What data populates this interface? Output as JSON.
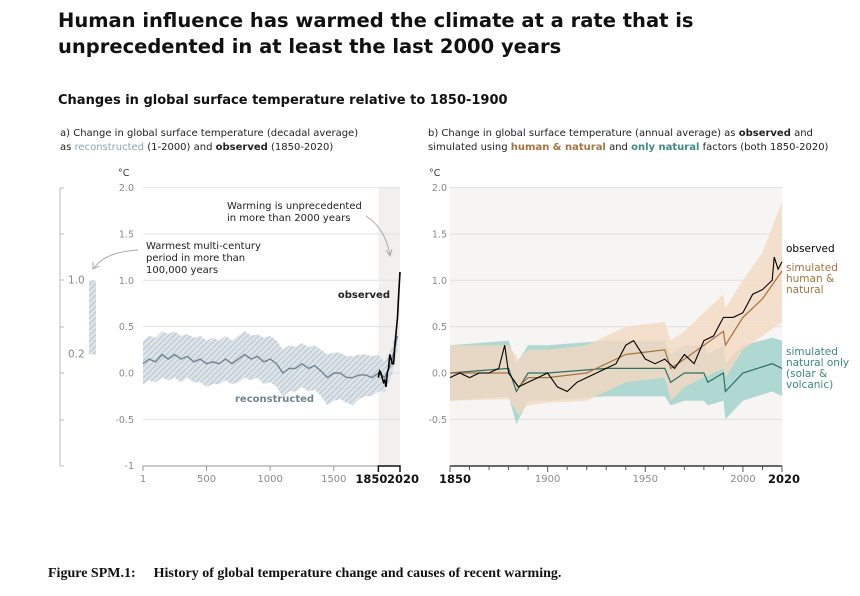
{
  "title": "Human influence has warmed the climate at a rate that is unprecedented in at least the last 2000 years",
  "subtitle": "Changes in global surface temperature relative to 1850-1900",
  "caption": {
    "label": "Figure SPM.1:",
    "text": "History of global temperature change and causes of recent warming."
  },
  "colors": {
    "reconstructed": "#8fa3b2",
    "reconstructed_line": "#6f8593",
    "observed": "#000000",
    "human_natural": "#a6733d",
    "human_natural_band": "#f4d8c2",
    "natural": "#3c8a80",
    "natural_band": "#a3d2cc",
    "shade": "#f1f0ef"
  },
  "chart_data": [
    {
      "type": "line",
      "panel_title": {
        "p1": "a) Change in global surface temperature (decadal average)",
        "p2": "as",
        "reconstructed": "reconstructed",
        "p3": "(1-2000) and",
        "observed": "observed",
        "p4": "(1850-2020)"
      },
      "ylabel": "°C",
      "ylim": [
        -1,
        2
      ],
      "yticks": [
        "2.0",
        "1.5",
        "1.0",
        "0.5",
        "0.0",
        "-0.5",
        "-1"
      ],
      "xlim": [
        1,
        2020
      ],
      "xticks": [
        "1",
        "500",
        "1000",
        "1500"
      ],
      "xticks_bold": [
        "1850",
        "2020"
      ],
      "shaded_period": [
        1850,
        2020
      ],
      "side_bar": {
        "range": [
          0.2,
          1.0
        ],
        "labels": [
          "1.0",
          "0.2"
        ],
        "annotation": [
          "Warmest multi-century",
          "period in more than",
          "100,000 years"
        ]
      },
      "annotation": [
        "Warming is unprecedented",
        "in more than 2000 years"
      ],
      "series": [
        {
          "name": "reconstructed",
          "x": [
            1,
            50,
            100,
            150,
            200,
            250,
            300,
            350,
            400,
            450,
            500,
            550,
            600,
            650,
            700,
            750,
            800,
            850,
            900,
            950,
            1000,
            1050,
            1100,
            1150,
            1200,
            1250,
            1300,
            1350,
            1400,
            1450,
            1500,
            1550,
            1600,
            1650,
            1700,
            1750,
            1800,
            1850,
            1900,
            1950,
            2000
          ],
          "y": [
            0.1,
            0.15,
            0.12,
            0.2,
            0.15,
            0.2,
            0.15,
            0.18,
            0.12,
            0.15,
            0.1,
            0.12,
            0.1,
            0.15,
            0.1,
            0.15,
            0.2,
            0.15,
            0.18,
            0.12,
            0.15,
            0.1,
            0.0,
            0.05,
            0.05,
            0.1,
            0.05,
            0.08,
            0.02,
            -0.05,
            0.0,
            0.0,
            -0.05,
            -0.05,
            -0.02,
            -0.02,
            -0.05,
            0.0,
            -0.05,
            0.1,
            0.4
          ],
          "lower": [
            -0.12,
            -0.08,
            -0.1,
            -0.05,
            -0.08,
            -0.05,
            -0.1,
            -0.05,
            -0.1,
            -0.1,
            -0.15,
            -0.12,
            -0.12,
            -0.08,
            -0.12,
            -0.1,
            -0.05,
            -0.08,
            -0.05,
            -0.12,
            -0.1,
            -0.15,
            -0.25,
            -0.2,
            -0.2,
            -0.15,
            -0.2,
            -0.18,
            -0.25,
            -0.35,
            -0.3,
            -0.28,
            -0.32,
            -0.35,
            -0.28,
            -0.25,
            -0.25,
            -0.2,
            -0.2,
            -0.05,
            0.25
          ],
          "upper": [
            0.35,
            0.4,
            0.38,
            0.45,
            0.42,
            0.45,
            0.4,
            0.42,
            0.38,
            0.4,
            0.35,
            0.38,
            0.35,
            0.4,
            0.35,
            0.4,
            0.45,
            0.4,
            0.42,
            0.38,
            0.4,
            0.35,
            0.25,
            0.3,
            0.28,
            0.32,
            0.28,
            0.3,
            0.25,
            0.2,
            0.22,
            0.22,
            0.18,
            0.18,
            0.2,
            0.2,
            0.18,
            0.2,
            0.12,
            0.25,
            0.5
          ]
        },
        {
          "name": "observed",
          "x": [
            1850,
            1860,
            1870,
            1880,
            1890,
            1900,
            1910,
            1920,
            1930,
            1940,
            1950,
            1960,
            1970,
            1980,
            1990,
            2000,
            2010,
            2020
          ],
          "y": [
            -0.05,
            0.02,
            0.0,
            -0.05,
            -0.1,
            -0.08,
            -0.15,
            0.0,
            0.05,
            0.2,
            0.15,
            0.1,
            0.1,
            0.3,
            0.45,
            0.6,
            0.85,
            1.09
          ]
        }
      ]
    },
    {
      "type": "line",
      "panel_title": {
        "p1": "b) Change in global surface temperature (annual average) as",
        "observed": "observed",
        "p2": "and",
        "p3": "simulated using",
        "human_natural": "human & natural",
        "p4": "and",
        "natural": "only natural",
        "p5": "factors (both 1850-2020)"
      },
      "ylabel": "°C",
      "ylim": [
        -1,
        2
      ],
      "yticks": [
        "2.0",
        "1.5",
        "1.0",
        "0.5",
        "0.0",
        "-0.5"
      ],
      "xlim": [
        1850,
        2020
      ],
      "xticks": [
        "1900",
        "1950",
        "2000"
      ],
      "xticks_bold": [
        "1850",
        "2020"
      ],
      "series": [
        {
          "name": "observed",
          "label": [
            "observed"
          ],
          "x": [
            1850,
            1855,
            1860,
            1865,
            1870,
            1875,
            1878,
            1880,
            1885,
            1890,
            1895,
            1900,
            1905,
            1910,
            1915,
            1920,
            1925,
            1930,
            1935,
            1940,
            1944,
            1950,
            1955,
            1960,
            1965,
            1970,
            1975,
            1980,
            1985,
            1990,
            1995,
            2000,
            2005,
            2010,
            2015,
            2016,
            2018,
            2020
          ],
          "y": [
            -0.05,
            0.0,
            -0.05,
            0.0,
            0.0,
            0.05,
            0.3,
            0.0,
            -0.15,
            -0.1,
            -0.05,
            0.0,
            -0.15,
            -0.2,
            -0.1,
            -0.05,
            0.0,
            0.05,
            0.1,
            0.3,
            0.35,
            0.15,
            0.1,
            0.15,
            0.05,
            0.2,
            0.1,
            0.35,
            0.4,
            0.6,
            0.6,
            0.65,
            0.85,
            0.9,
            1.0,
            1.25,
            1.12,
            1.2
          ]
        },
        {
          "name": "simulated human & natural",
          "label": [
            "simulated",
            "human &",
            "natural"
          ],
          "x": [
            1850,
            1880,
            1885,
            1890,
            1900,
            1920,
            1940,
            1960,
            1963,
            1970,
            1980,
            1990,
            1991,
            2000,
            2010,
            2020
          ],
          "y": [
            0.0,
            0.0,
            -0.15,
            -0.05,
            -0.05,
            0.0,
            0.2,
            0.25,
            0.05,
            0.15,
            0.3,
            0.45,
            0.3,
            0.6,
            0.8,
            1.1
          ],
          "lower": [
            -0.3,
            -0.28,
            -0.45,
            -0.35,
            -0.32,
            -0.3,
            -0.1,
            -0.05,
            -0.3,
            -0.15,
            -0.05,
            0.05,
            -0.05,
            0.25,
            0.4,
            0.55
          ],
          "upper": [
            0.3,
            0.3,
            0.15,
            0.25,
            0.25,
            0.3,
            0.5,
            0.55,
            0.35,
            0.45,
            0.65,
            0.85,
            0.7,
            1.0,
            1.3,
            1.85
          ]
        },
        {
          "name": "simulated natural only",
          "label": [
            "simulated",
            "natural only",
            "(solar &",
            "volcanic)"
          ],
          "x": [
            1850,
            1880,
            1884,
            1890,
            1900,
            1930,
            1960,
            1963,
            1970,
            1980,
            1982,
            1990,
            1991,
            2000,
            2015,
            2020
          ],
          "y": [
            0.0,
            0.05,
            -0.2,
            0.0,
            0.0,
            0.05,
            0.05,
            -0.1,
            0.0,
            0.0,
            -0.1,
            0.0,
            -0.2,
            0.0,
            0.1,
            0.05
          ],
          "lower": [
            -0.3,
            -0.25,
            -0.55,
            -0.3,
            -0.3,
            -0.25,
            -0.25,
            -0.35,
            -0.3,
            -0.3,
            -0.35,
            -0.3,
            -0.5,
            -0.3,
            -0.2,
            -0.25
          ],
          "upper": [
            0.3,
            0.35,
            0.1,
            0.3,
            0.3,
            0.35,
            0.35,
            0.2,
            0.3,
            0.3,
            0.2,
            0.3,
            0.1,
            0.3,
            0.38,
            0.35
          ]
        }
      ]
    }
  ]
}
